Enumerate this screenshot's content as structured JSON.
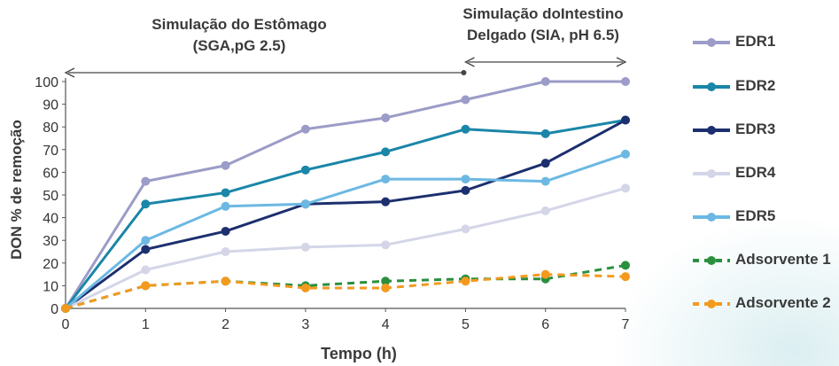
{
  "annotations": {
    "stomach_line1": "Simulação do Estômago",
    "stomach_line2": "(SGA,pG 2.5)",
    "intestine_line1": "Simulação doIntestino",
    "intestine_line2": "Delgado (SIA, pH 6.5)"
  },
  "chart_data": {
    "type": "line",
    "title": "",
    "xlabel": "Tempo (h)",
    "ylabel": "DON % de remoção",
    "x": [
      0,
      1,
      2,
      3,
      4,
      5,
      6,
      7
    ],
    "xlim": [
      0,
      7
    ],
    "ylim": [
      0,
      100
    ],
    "xticks": [
      "0",
      "1",
      "2",
      "3",
      "4",
      "5",
      "6",
      "7"
    ],
    "yticks": [
      "0",
      "10",
      "20",
      "30",
      "40",
      "50",
      "60",
      "70",
      "80",
      "90",
      "100"
    ],
    "grid": false,
    "legend_position": "right",
    "phase_ranges": [
      {
        "label_bind": "stomach",
        "from": 0,
        "to": 5
      },
      {
        "label_bind": "intestine",
        "from": 5,
        "to": 7
      }
    ],
    "series": [
      {
        "name": "EDR1",
        "color": "#9b9cc7",
        "style": "solid",
        "values": [
          0,
          56,
          63,
          79,
          84,
          92,
          100,
          100
        ]
      },
      {
        "name": "EDR2",
        "color": "#1a86a8",
        "style": "solid",
        "values": [
          0,
          46,
          51,
          61,
          69,
          79,
          77,
          83
        ]
      },
      {
        "name": "EDR3",
        "color": "#1c2f6e",
        "style": "solid",
        "values": [
          0,
          26,
          34,
          46,
          47,
          52,
          64,
          83
        ]
      },
      {
        "name": "EDR4",
        "color": "#d4d6e8",
        "style": "solid",
        "values": [
          0,
          17,
          25,
          27,
          28,
          35,
          43,
          53
        ]
      },
      {
        "name": "EDR5",
        "color": "#6cb8e3",
        "style": "solid",
        "values": [
          0,
          30,
          45,
          46,
          57,
          57,
          56,
          68
        ]
      },
      {
        "name": "Adsorvente 1",
        "color": "#2a8f3e",
        "style": "dashed",
        "values": [
          0,
          10,
          12,
          10,
          12,
          13,
          13,
          19
        ]
      },
      {
        "name": "Adsorvente 2",
        "color": "#f39a1e",
        "style": "dashed",
        "values": [
          0,
          10,
          12,
          9,
          9,
          12,
          15,
          14
        ]
      }
    ]
  }
}
